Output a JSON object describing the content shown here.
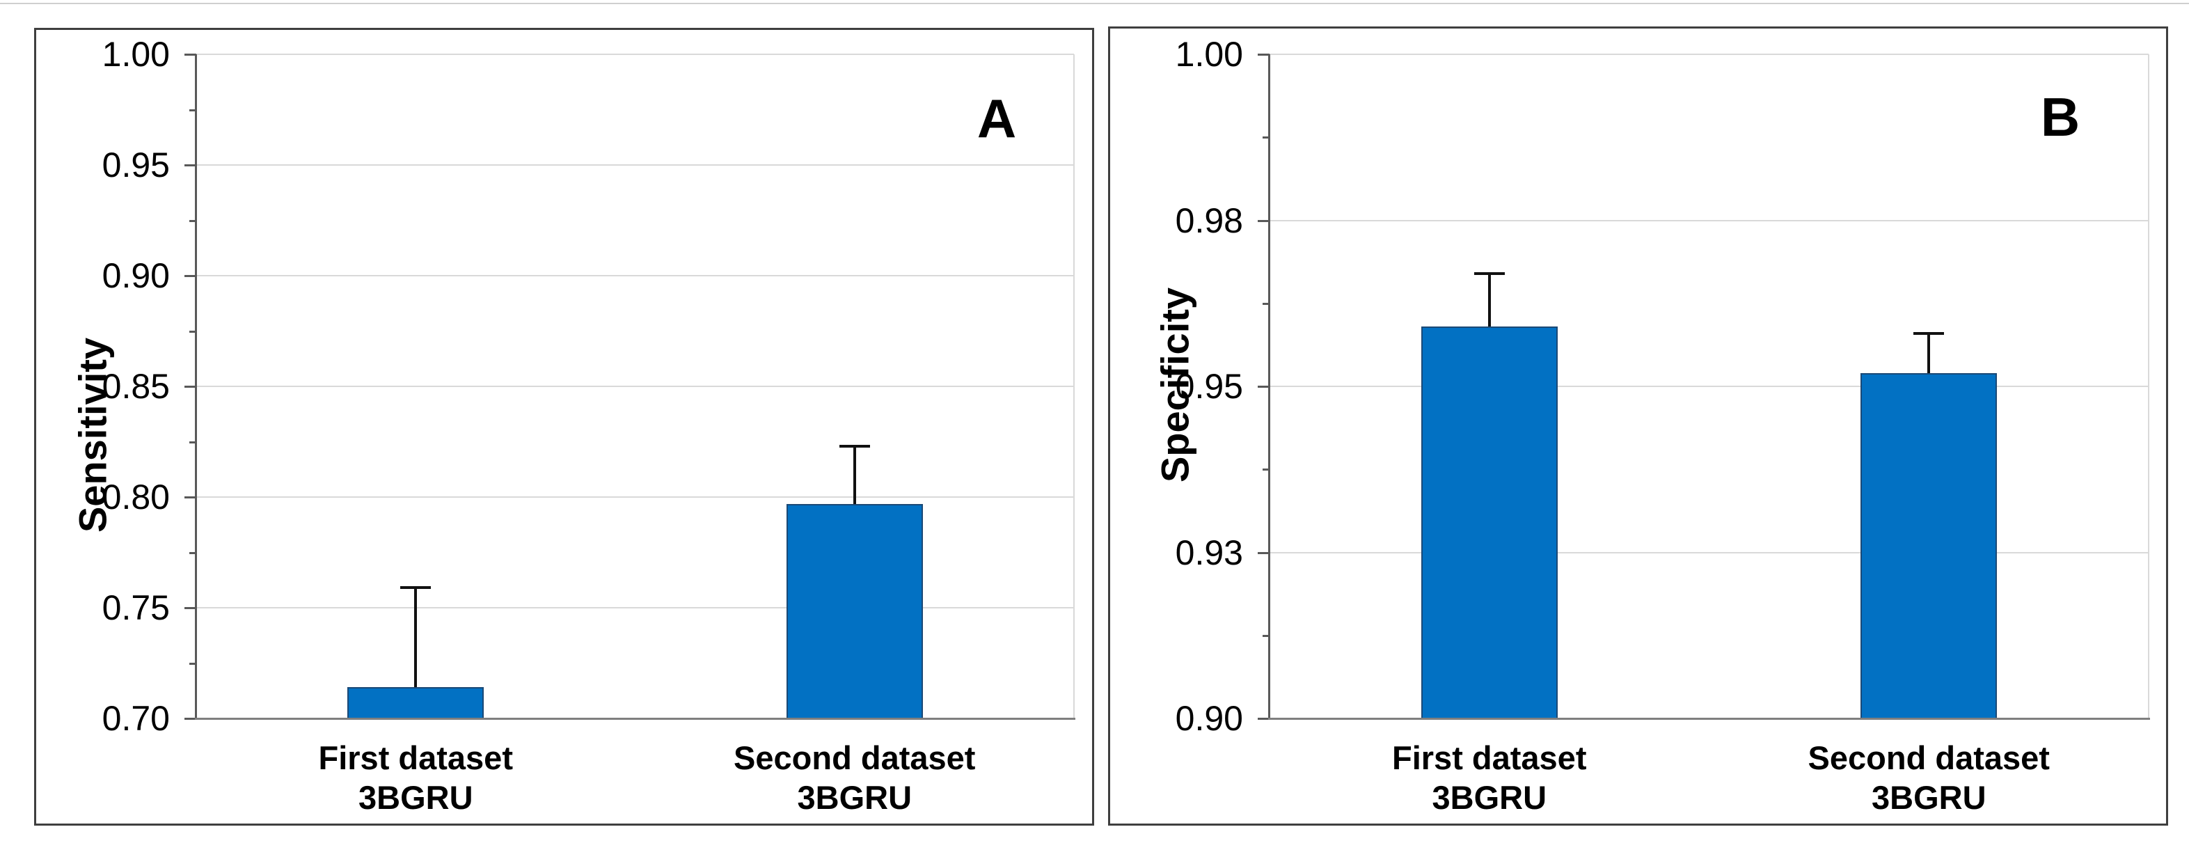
{
  "figure": {
    "background": "#ffffff",
    "panel_letters": [
      "A",
      "B"
    ]
  },
  "colors": {
    "bar_fill": "#0271c3",
    "bar_border": "#1b4976",
    "gridline": "#d9d9d9",
    "axis_line": "#595959",
    "baseline": "#7f7f7f",
    "panel_border": "#3f3f3f",
    "error_bar": "#111111",
    "text": "#000000"
  },
  "chart_data": [
    {
      "type": "bar",
      "panel_label": "A",
      "title": "",
      "xlabel": "",
      "ylabel": "Sensitivity",
      "ylim": [
        0.7,
        1.0
      ],
      "grid": true,
      "legend": false,
      "ticks": [
        {
          "value": 0.7,
          "label": "0.70"
        },
        {
          "value": 0.75,
          "label": "0.75"
        },
        {
          "value": 0.8,
          "label": "0.80"
        },
        {
          "value": 0.85,
          "label": "0.85"
        },
        {
          "value": 0.9,
          "label": "0.90"
        },
        {
          "value": 0.95,
          "label": "0.95"
        },
        {
          "value": 1.0,
          "label": "1.00"
        }
      ],
      "minor_ticks": [
        0.725,
        0.775,
        0.825,
        0.875,
        0.925,
        0.975
      ],
      "categories": [
        [
          "First dataset",
          "3BGRU"
        ],
        [
          "Second dataset",
          "3BGRU"
        ]
      ],
      "values": [
        0.714,
        0.797
      ],
      "error_top": [
        0.759,
        0.823
      ]
    },
    {
      "type": "bar",
      "panel_label": "B",
      "title": "",
      "xlabel": "",
      "ylabel": "Specificity",
      "ylim": [
        0.9,
        1.0
      ],
      "grid": true,
      "legend": false,
      "ticks": [
        {
          "value": 0.9,
          "label": "0.90"
        },
        {
          "value": 0.925,
          "label": "0.93"
        },
        {
          "value": 0.95,
          "label": "0.95"
        },
        {
          "value": 0.975,
          "label": "0.98"
        },
        {
          "value": 1.0,
          "label": "1.00"
        }
      ],
      "minor_ticks": [
        0.9125,
        0.9375,
        0.9625,
        0.9875
      ],
      "categories": [
        [
          "First dataset",
          "3BGRU"
        ],
        [
          "Second dataset",
          "3BGRU"
        ]
      ],
      "values": [
        0.959,
        0.952
      ],
      "error_top": [
        0.967,
        0.958
      ]
    }
  ]
}
